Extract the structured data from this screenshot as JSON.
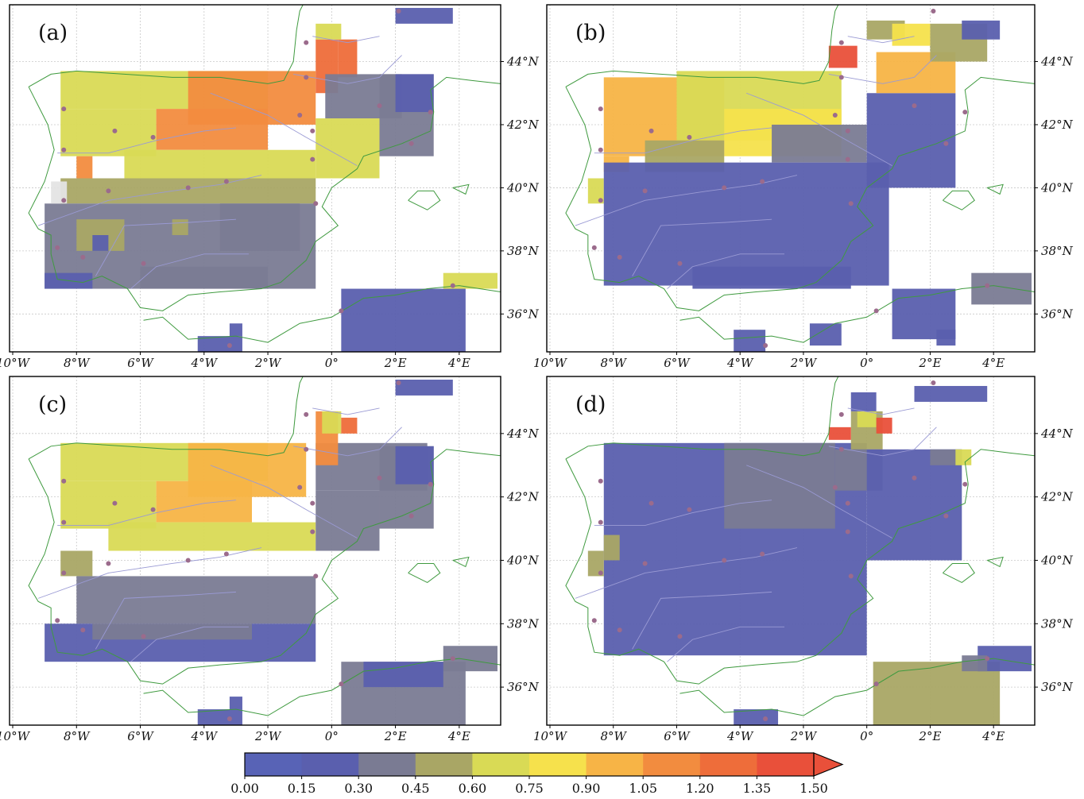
{
  "figure": {
    "panels": [
      {
        "id": "a",
        "label": "(a)"
      },
      {
        "id": "b",
        "label": "(b)"
      },
      {
        "id": "c",
        "label": "(c)"
      },
      {
        "id": "d",
        "label": "(d)"
      }
    ],
    "lon_ticks": [
      "10°W",
      "8°W",
      "6°W",
      "4°W",
      "2°W",
      "0°",
      "2°E",
      "4°E"
    ],
    "lat_ticks": [
      "44°N",
      "42°N",
      "40°N",
      "38°N",
      "36°N"
    ],
    "colorbar": {
      "ticks": [
        "0.00",
        "0.15",
        "0.30",
        "0.45",
        "0.60",
        "0.75",
        "0.90",
        "1.05",
        "1.20",
        "1.35",
        "1.50"
      ],
      "colors": [
        "#5863b6",
        "#5a5fae",
        "#7a7b93",
        "#a9a665",
        "#d9da55",
        "#f6e14c",
        "#f7b446",
        "#f28c3f",
        "#ee6d3a",
        "#e9503a"
      ],
      "extend": "max"
    },
    "colors": {
      "coast": "#3f9a3f",
      "rivers": "#9a9ad4",
      "grid": "#c8c8c8",
      "station": "#9b6b8c",
      "nodata": "#e4e4e4"
    }
  }
}
